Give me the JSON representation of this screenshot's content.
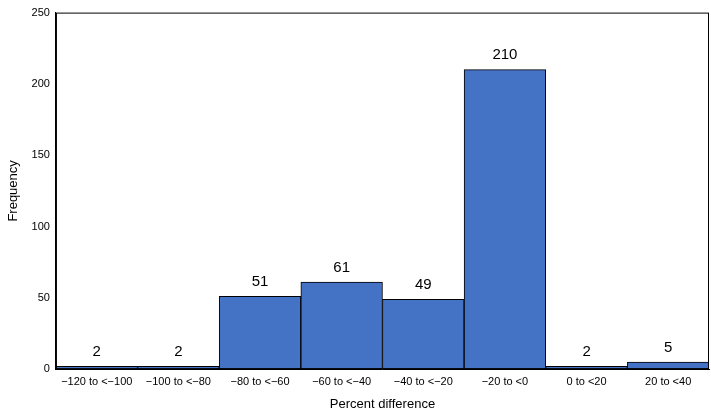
{
  "chart_data": {
    "type": "bar",
    "categories": [
      "−120 to <−100",
      "−100 to <−80",
      "−80 to <−60",
      "−60 to <−40",
      "−40 to <−20",
      "−20 to <0",
      "0 to <20",
      "20 to <40"
    ],
    "values": [
      2,
      2,
      51,
      61,
      49,
      210,
      2,
      5
    ],
    "color": "#4472c4",
    "x_label": "Percent difference",
    "y_label": "Frequency",
    "ylim": [
      0,
      250
    ],
    "yticks": [
      0,
      50,
      100,
      150,
      200,
      250
    ],
    "grid": false,
    "data_labels": true
  }
}
